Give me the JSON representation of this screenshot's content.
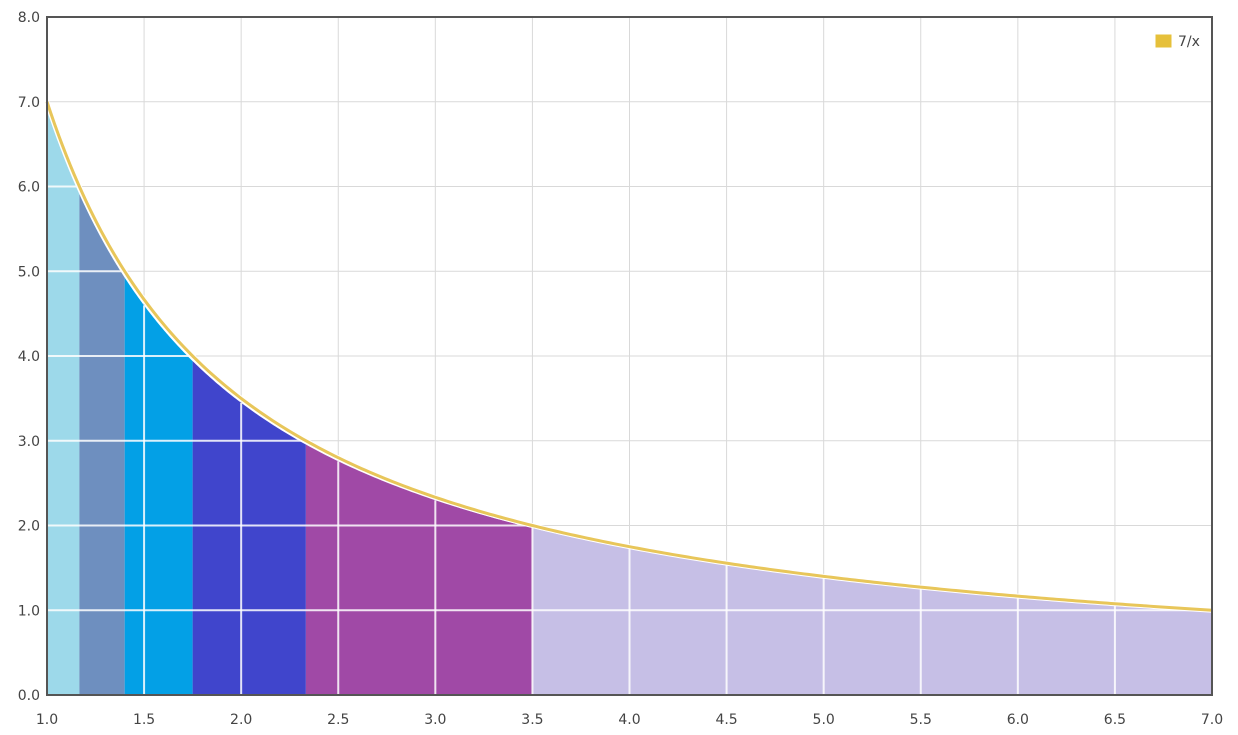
{
  "chart_data": {
    "type": "area",
    "xlim": [
      1.0,
      7.0
    ],
    "ylim": [
      0.0,
      8.0
    ],
    "grid": true,
    "legend_position": "top-right",
    "x_ticks": [
      "1.0",
      "1.5",
      "2.0",
      "2.5",
      "3.0",
      "3.5",
      "4.0",
      "4.5",
      "5.0",
      "5.5",
      "6.0",
      "6.5",
      "7.0"
    ],
    "y_ticks": [
      "0.0",
      "1.0",
      "2.0",
      "3.0",
      "4.0",
      "5.0",
      "6.0",
      "7.0",
      "8.0"
    ],
    "series": [
      {
        "name": "7/x",
        "function": "7/x",
        "color": "#e8c65a",
        "legend_color": "#e6c03a"
      }
    ],
    "bands": [
      {
        "x_start": 1.0,
        "x_end": 1.1667,
        "y_top_at_end": 6.0,
        "color": "#9dd9ea"
      },
      {
        "x_start": 1.1667,
        "x_end": 1.4,
        "y_top_at_end": 5.0,
        "color": "#6e8fbf"
      },
      {
        "x_start": 1.4,
        "x_end": 1.75,
        "y_top_at_end": 4.0,
        "color": "#03a0e6"
      },
      {
        "x_start": 1.75,
        "x_end": 2.3333,
        "y_top_at_end": 3.0,
        "color": "#4045cc"
      },
      {
        "x_start": 2.3333,
        "x_end": 3.5,
        "y_top_at_end": 2.0,
        "color": "#a049a6"
      },
      {
        "x_start": 3.5,
        "x_end": 7.0,
        "y_top_at_end": 1.0,
        "color": "#c6bfe6"
      }
    ]
  }
}
